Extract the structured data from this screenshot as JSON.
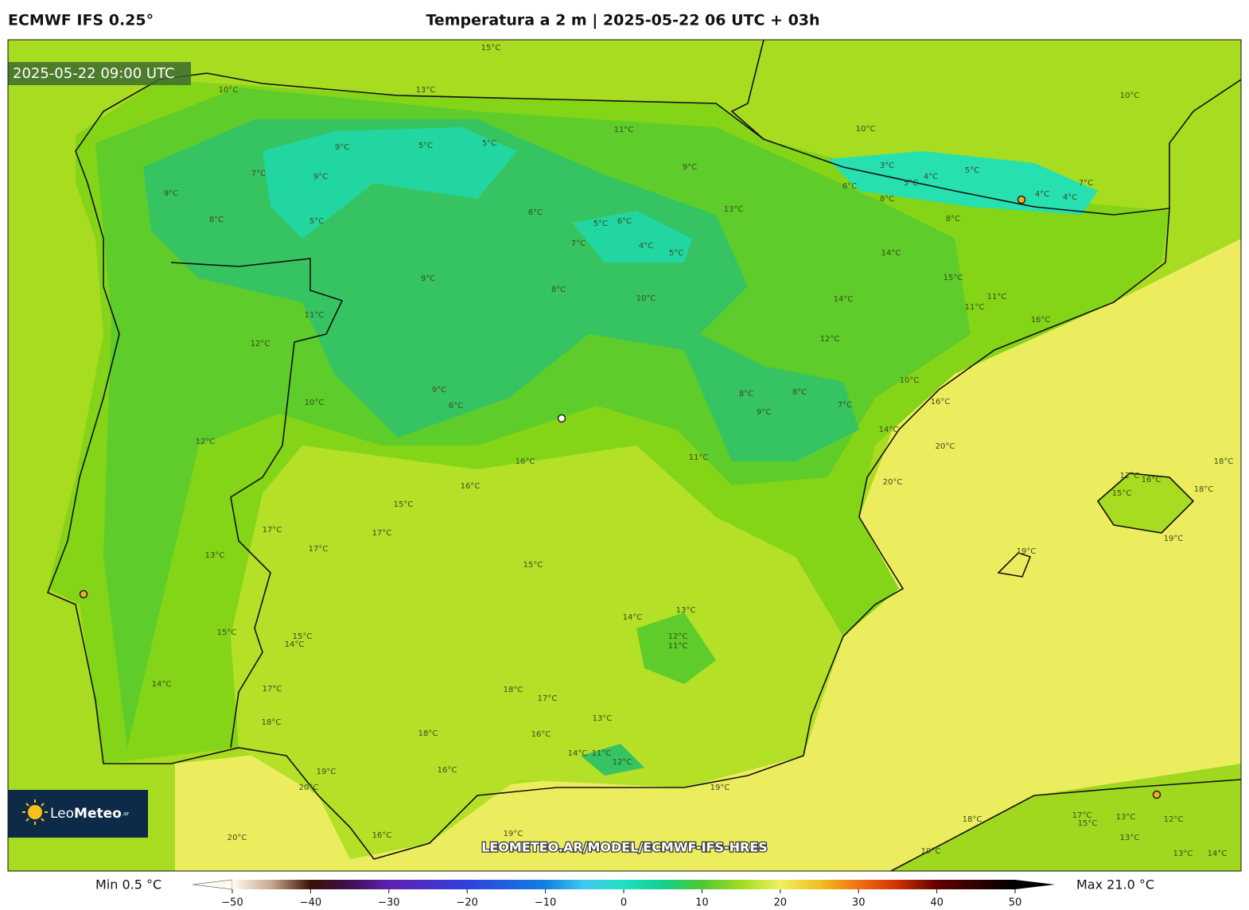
{
  "header": {
    "model": "ECMWF IFS 0.25°",
    "title": "Temperatura a 2 m | 2025-05-22 06 UTC + 03h"
  },
  "map": {
    "timestamp": "2025-05-22 09:00 UTC",
    "watermark": "LEOMETEO.AR/MODEL/ECMWF-IFS-HRES",
    "logo": {
      "leo": "Leo",
      "meteo": "Meteo",
      "suffix": ".ar"
    },
    "contour_labels": [
      "15°C",
      "13°C",
      "10°C",
      "11°C",
      "10°C",
      "10°C",
      "9°C",
      "5°C",
      "5°C",
      "7°C",
      "9°C",
      "9°C",
      "8°C",
      "5°C",
      "9°C",
      "3°C",
      "6°C",
      "5°C",
      "4°C",
      "5°C",
      "8°C",
      "4°C",
      "8°C",
      "7°C",
      "4°C",
      "13°C",
      "6°C",
      "5°C",
      "6°C",
      "4°C",
      "7°C",
      "5°C",
      "14°C",
      "15°C",
      "9°C",
      "8°C",
      "10°C",
      "14°C",
      "11°C",
      "11°C",
      "11°C",
      "16°C",
      "12°C",
      "12°C",
      "10°C",
      "9°C",
      "6°C",
      "10°C",
      "8°C",
      "8°C",
      "7°C",
      "9°C",
      "16°C",
      "14°C",
      "12°C",
      "20°C",
      "16°C",
      "11°C",
      "16°C",
      "20°C",
      "18°C",
      "15°C",
      "12°C",
      "16°C",
      "15°C",
      "18°C",
      "17°C",
      "17°C",
      "17°C",
      "13°C",
      "19°C",
      "19°C",
      "15°C",
      "13°C",
      "14°C",
      "12°C",
      "11°C",
      "15°C",
      "15°C",
      "14°C",
      "14°C",
      "17°C",
      "18°C",
      "17°C",
      "18°C",
      "13°C",
      "18°C",
      "16°C",
      "14°C",
      "11°C",
      "12°C",
      "16°C",
      "19°C",
      "20°C",
      "19°C",
      "19°C",
      "16°C",
      "20°C",
      "18°C",
      "17°C",
      "15°C",
      "13°C",
      "12°C",
      "13°C",
      "19°C",
      "13°C",
      "14°C"
    ]
  },
  "colorbar": {
    "min_label": "Min 0.5 °C",
    "max_label": "Max 21.0 °C",
    "range": [
      -50,
      50
    ],
    "ticks": [
      {
        "value": -50,
        "label": "−50"
      },
      {
        "value": -40,
        "label": "−40"
      },
      {
        "value": -30,
        "label": "−30"
      },
      {
        "value": -20,
        "label": "−20"
      },
      {
        "value": -10,
        "label": "−10"
      },
      0,
      10,
      20,
      30,
      40,
      50
    ]
  }
}
